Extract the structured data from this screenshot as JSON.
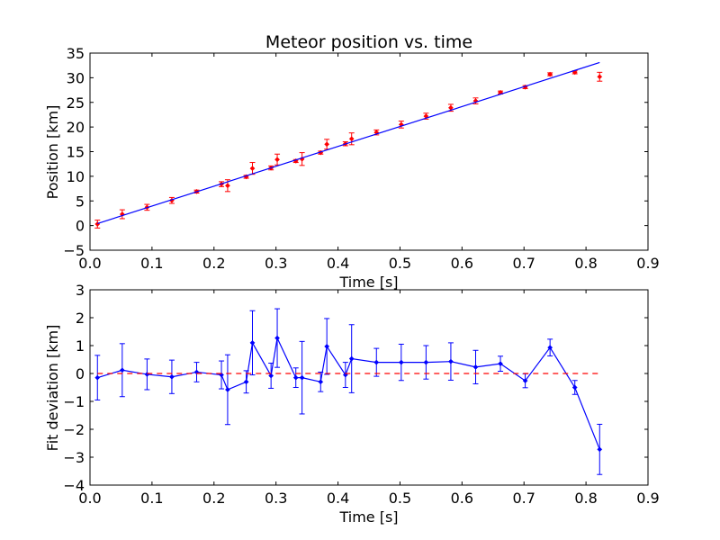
{
  "chart_data": [
    {
      "type": "scatter",
      "title": "Meteor position vs. time",
      "xlabel": "Time [s]",
      "ylabel": "Position [km]",
      "xlim": [
        0,
        0.9
      ],
      "ylim": [
        -5,
        35
      ],
      "xticks": [
        0.0,
        0.1,
        0.2,
        0.3,
        0.4,
        0.5,
        0.6,
        0.7,
        0.8,
        0.9
      ],
      "xtick_labels": [
        "0.0",
        "0.1",
        "0.2",
        "0.3",
        "0.4",
        "0.5",
        "0.6",
        "0.7",
        "0.8",
        "0.9"
      ],
      "yticks": [
        -5,
        0,
        5,
        10,
        15,
        20,
        25,
        30,
        35
      ],
      "ytick_labels": [
        "−5",
        "0",
        "5",
        "10",
        "15",
        "20",
        "25",
        "30",
        "35"
      ],
      "grid": false,
      "legend": null,
      "series": [
        {
          "kind": "errorbar-points",
          "color": "#ff0000",
          "x": [
            0.012,
            0.052,
            0.092,
            0.132,
            0.172,
            0.212,
            0.222,
            0.252,
            0.262,
            0.292,
            0.302,
            0.332,
            0.342,
            0.372,
            0.382,
            0.412,
            0.422,
            0.462,
            0.502,
            0.542,
            0.582,
            0.622,
            0.662,
            0.702,
            0.742,
            0.782,
            0.822
          ],
          "y": [
            0.3,
            2.3,
            3.7,
            5.1,
            6.9,
            8.4,
            8.1,
            9.9,
            11.6,
            11.7,
            13.4,
            13.1,
            13.5,
            14.8,
            16.5,
            16.6,
            17.6,
            18.9,
            20.5,
            22.2,
            23.9,
            25.3,
            27.0,
            28.1,
            30.7,
            31.1,
            30.2
          ],
          "yerr": [
            0.8,
            0.9,
            0.6,
            0.6,
            0.3,
            0.5,
            1.2,
            0.3,
            1.2,
            0.4,
            1.1,
            0.3,
            1.3,
            0.3,
            1.0,
            0.4,
            1.2,
            0.5,
            0.7,
            0.6,
            0.7,
            0.6,
            0.3,
            0.3,
            0.3,
            0.3,
            0.9
          ]
        },
        {
          "kind": "fit-line",
          "color": "#0000ff",
          "x": [
            0.012,
            0.822
          ],
          "y": [
            0.4,
            33.1
          ]
        }
      ]
    },
    {
      "type": "line",
      "title": "",
      "xlabel": "Time [s]",
      "ylabel": "Fit deviation [km]",
      "xlim": [
        0,
        0.9
      ],
      "ylim": [
        -4,
        3
      ],
      "xticks": [
        0.0,
        0.1,
        0.2,
        0.3,
        0.4,
        0.5,
        0.6,
        0.7,
        0.8,
        0.9
      ],
      "xtick_labels": [
        "0.0",
        "0.1",
        "0.2",
        "0.3",
        "0.4",
        "0.5",
        "0.6",
        "0.7",
        "0.8",
        "0.9"
      ],
      "yticks": [
        -4,
        -3,
        -2,
        -1,
        0,
        1,
        2,
        3
      ],
      "ytick_labels": [
        "−4",
        "−3",
        "−2",
        "−1",
        "0",
        "1",
        "2",
        "3"
      ],
      "grid": false,
      "legend": null,
      "series": [
        {
          "kind": "errorbar-line",
          "color": "#0000ff",
          "x": [
            0.012,
            0.052,
            0.092,
            0.132,
            0.172,
            0.212,
            0.222,
            0.252,
            0.262,
            0.292,
            0.302,
            0.332,
            0.342,
            0.372,
            0.382,
            0.412,
            0.422,
            0.462,
            0.502,
            0.542,
            0.582,
            0.622,
            0.662,
            0.702,
            0.742,
            0.782,
            0.822
          ],
          "y": [
            -0.15,
            0.12,
            -0.03,
            -0.12,
            0.05,
            -0.05,
            -0.58,
            -0.3,
            1.1,
            -0.08,
            1.27,
            -0.15,
            -0.15,
            -0.3,
            0.97,
            -0.05,
            0.53,
            0.4,
            0.4,
            0.4,
            0.43,
            0.23,
            0.35,
            -0.26,
            0.93,
            -0.5,
            -2.72
          ],
          "yerr": [
            0.8,
            0.95,
            0.55,
            0.6,
            0.35,
            0.5,
            1.25,
            0.4,
            1.15,
            0.45,
            1.05,
            0.35,
            1.3,
            0.35,
            1.0,
            0.45,
            1.22,
            0.5,
            0.65,
            0.6,
            0.67,
            0.6,
            0.27,
            0.25,
            0.3,
            0.25,
            0.9
          ]
        },
        {
          "kind": "reference-line",
          "color": "#ff0000",
          "dashed": true,
          "x": [
            0.012,
            0.822
          ],
          "y": [
            0,
            0
          ]
        }
      ]
    }
  ]
}
